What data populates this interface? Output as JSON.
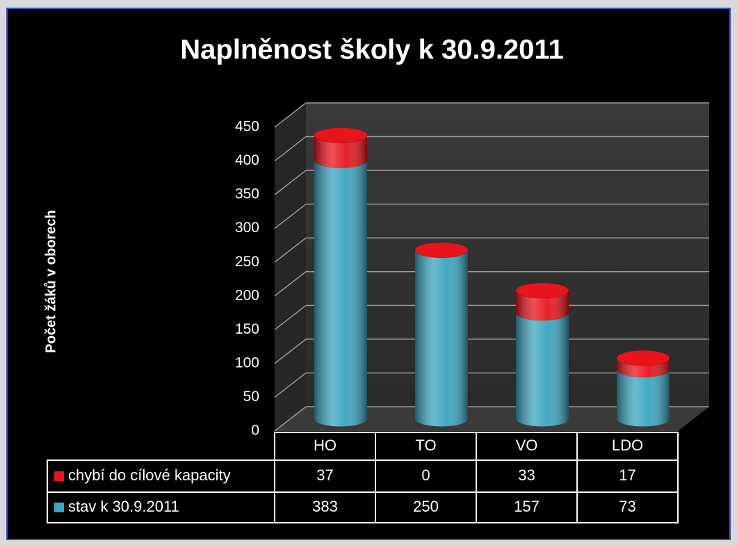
{
  "chart_data": {
    "type": "stacked_bar_3d",
    "title": "Naplněnost školy k 30.9.2011",
    "y_label": "Počet žáků v oborech",
    "categories": [
      "HO",
      "TO",
      "VO",
      "LDO"
    ],
    "series": [
      {
        "name": "stav k 30.9.2011",
        "color": "#3aa5bf",
        "values": [
          383,
          250,
          157,
          73
        ]
      },
      {
        "name": "chybí do cílové kapacity",
        "color": "#e8141c",
        "values": [
          37,
          0,
          33,
          17
        ]
      }
    ],
    "ylim": [
      0,
      450
    ],
    "yticks": [
      0,
      50,
      100,
      150,
      200,
      250,
      300,
      350,
      400,
      450
    ],
    "grid": true
  }
}
